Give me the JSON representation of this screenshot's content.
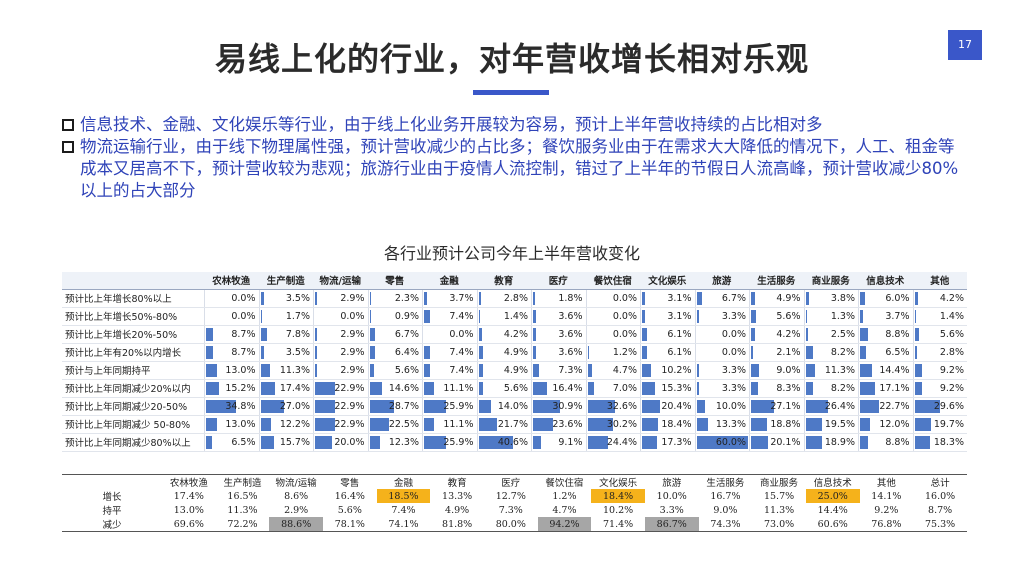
{
  "slide": {
    "title": "易线上化的行业，对年营收增长相对乐观",
    "page_number": "17",
    "accent_color": "#3a57c9"
  },
  "bullets": [
    "信息技术、金融、文化娱乐等行业，由于线上化业务开展较为容易，预计上半年营收持续的占比相对多",
    "物流运输行业，由于线下物理属性强，预计营收减少的占比多；餐饮服务业由于在需求大大降低的情况下，人工、租金等成本又居高不下，预计营收较为悲观；旅游行业由于疫情人流控制，错过了上半年的节假日人流高峰，预计营收减少80%以上的占大部分"
  ],
  "chart_title": "各行业预计公司今年上半年营收变化",
  "chart_data": {
    "type": "table",
    "bar_color": "#4e79c6",
    "columns": [
      "农林牧渔",
      "生产制造",
      "物流/运输",
      "零售",
      "金融",
      "教育",
      "医疗",
      "餐饮住宿",
      "文化娱乐",
      "旅游",
      "生活服务",
      "商业服务",
      "信息技术",
      "其他"
    ],
    "rows": [
      {
        "label": "预计比上年增长80%以上",
        "values": [
          "0.0%",
          "3.5%",
          "2.9%",
          "2.3%",
          "3.7%",
          "2.8%",
          "1.8%",
          "0.0%",
          "3.1%",
          "6.7%",
          "4.9%",
          "3.8%",
          "6.0%",
          "4.2%"
        ]
      },
      {
        "label": "预计比上年增长50%-80%",
        "values": [
          "0.0%",
          "1.7%",
          "0.0%",
          "0.9%",
          "7.4%",
          "1.4%",
          "3.6%",
          "0.0%",
          "3.1%",
          "3.3%",
          "5.6%",
          "1.3%",
          "3.7%",
          "1.4%"
        ]
      },
      {
        "label": "预计比上年增长20%-50%",
        "values": [
          "8.7%",
          "7.8%",
          "2.9%",
          "6.7%",
          "0.0%",
          "4.2%",
          "3.6%",
          "0.0%",
          "6.1%",
          "0.0%",
          "4.2%",
          "2.5%",
          "8.8%",
          "5.6%"
        ]
      },
      {
        "label": "预计比上年有20%以内增长",
        "values": [
          "8.7%",
          "3.5%",
          "2.9%",
          "6.4%",
          "7.4%",
          "4.9%",
          "3.6%",
          "1.2%",
          "6.1%",
          "0.0%",
          "2.1%",
          "8.2%",
          "6.5%",
          "2.8%"
        ]
      },
      {
        "label": "预计与上年同期持平",
        "values": [
          "13.0%",
          "11.3%",
          "2.9%",
          "5.6%",
          "7.4%",
          "4.9%",
          "7.3%",
          "4.7%",
          "10.2%",
          "3.3%",
          "9.0%",
          "11.3%",
          "14.4%",
          "9.2%"
        ]
      },
      {
        "label": "预计比上年同期减少20%以内",
        "values": [
          "15.2%",
          "17.4%",
          "22.9%",
          "14.6%",
          "11.1%",
          "5.6%",
          "16.4%",
          "7.0%",
          "15.3%",
          "3.3%",
          "8.3%",
          "8.2%",
          "17.1%",
          "9.2%"
        ]
      },
      {
        "label": "预计比上年同期减少20-50%",
        "values": [
          "34.8%",
          "27.0%",
          "22.9%",
          "28.7%",
          "25.9%",
          "14.0%",
          "30.9%",
          "32.6%",
          "20.4%",
          "10.0%",
          "27.1%",
          "26.4%",
          "22.7%",
          "29.6%"
        ]
      },
      {
        "label": "预计比上年同期减少 50-80%",
        "values": [
          "13.0%",
          "12.2%",
          "22.9%",
          "22.5%",
          "11.1%",
          "21.7%",
          "23.6%",
          "30.2%",
          "18.4%",
          "13.3%",
          "18.8%",
          "19.5%",
          "12.0%",
          "19.7%"
        ]
      },
      {
        "label": "预计比上年同期减少80%以上",
        "values": [
          "6.5%",
          "15.7%",
          "20.0%",
          "12.3%",
          "25.9%",
          "40.6%",
          "9.1%",
          "24.4%",
          "17.3%",
          "60.0%",
          "20.1%",
          "18.9%",
          "8.8%",
          "18.3%"
        ]
      }
    ]
  },
  "summary": {
    "highlight_color": "#f5b21b",
    "gray_color": "#a6a6a6",
    "columns": [
      "农林牧渔",
      "生产制造",
      "物流/运输",
      "零售",
      "金融",
      "教育",
      "医疗",
      "餐饮住宿",
      "文化娱乐",
      "旅游",
      "生活服务",
      "商业服务",
      "信息技术",
      "其他",
      "总计"
    ],
    "rows": [
      {
        "label": "增长",
        "values": [
          "17.4%",
          "16.5%",
          "8.6%",
          "16.4%",
          "18.5%",
          "13.3%",
          "12.7%",
          "1.2%",
          "18.4%",
          "10.0%",
          "16.7%",
          "15.7%",
          "25.0%",
          "14.1%",
          "16.0%"
        ],
        "highlight": [
          4,
          8,
          12
        ],
        "gray": []
      },
      {
        "label": "持平",
        "values": [
          "13.0%",
          "11.3%",
          "2.9%",
          "5.6%",
          "7.4%",
          "4.9%",
          "7.3%",
          "4.7%",
          "10.2%",
          "3.3%",
          "9.0%",
          "11.3%",
          "14.4%",
          "9.2%",
          "8.7%"
        ],
        "highlight": [],
        "gray": []
      },
      {
        "label": "减少",
        "values": [
          "69.6%",
          "72.2%",
          "88.6%",
          "78.1%",
          "74.1%",
          "81.8%",
          "80.0%",
          "94.2%",
          "71.4%",
          "86.7%",
          "74.3%",
          "73.0%",
          "60.6%",
          "76.8%",
          "75.3%"
        ],
        "highlight": [],
        "gray": [
          2,
          7,
          9
        ]
      }
    ]
  }
}
